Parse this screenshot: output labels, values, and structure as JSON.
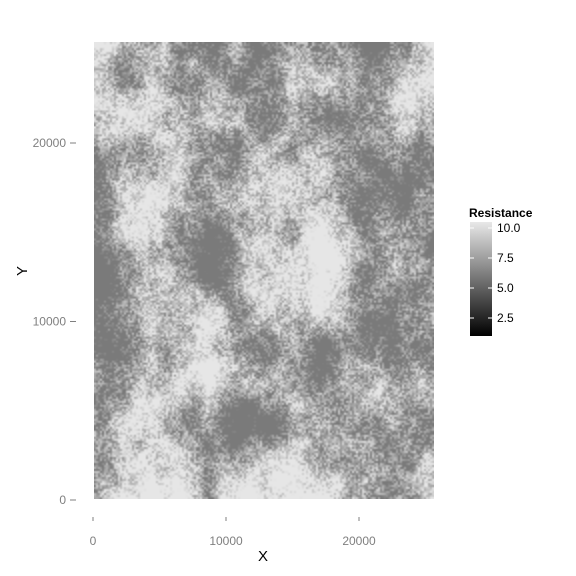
{
  "chart_data": {
    "type": "heatmap",
    "title": "",
    "xlabel": "X",
    "ylabel": "Y",
    "xlim": [
      0,
      26000
    ],
    "ylim": [
      0,
      26000
    ],
    "x_ticks": [
      0,
      10000,
      20000
    ],
    "x_tick_labels": [
      "0",
      "10000",
      "20000"
    ],
    "y_ticks": [
      0,
      10000,
      20000
    ],
    "y_tick_labels": [
      "0",
      "10000",
      "20000"
    ],
    "grid": false,
    "legend_placement": "right",
    "legend": {
      "title": "Resistance",
      "range": [
        1,
        10.5
      ],
      "breaks": [
        2.5,
        5.0,
        7.5,
        10.0
      ],
      "break_labels": [
        "2.5",
        "5.0",
        "7.5",
        "10.0"
      ],
      "color_low": "#000000",
      "color_high": "#e8e8e8"
    },
    "colors": {
      "low_resistance": "#7a7a7a",
      "high_resistance": "#e6e6e6"
    }
  }
}
